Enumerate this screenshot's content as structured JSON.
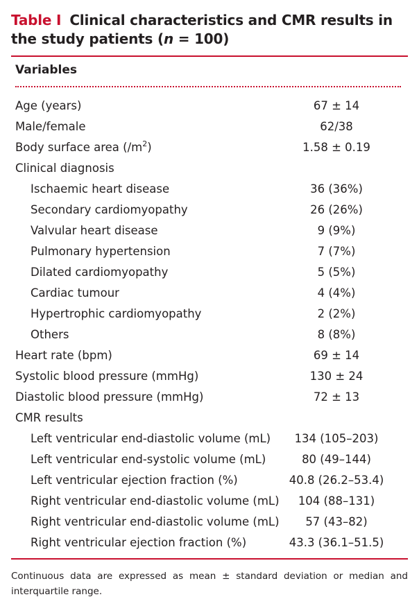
{
  "caption": {
    "label": "Table I",
    "title_part1": "Clinical characteristics and CMR results in the study patients (",
    "n_symbol": "n",
    "title_part2": " = 100)"
  },
  "header": {
    "variables": "Variables"
  },
  "rows": [
    {
      "name": "Age (years)",
      "value": "67 ± 14",
      "indent": false
    },
    {
      "name": "Male/female",
      "value": "62/38",
      "indent": false
    },
    {
      "name": "Body surface area (/m",
      "sup": "2",
      "name_end": ")",
      "value": "1.58 ± 0.19",
      "indent": false
    },
    {
      "name": "Clinical diagnosis",
      "value": "",
      "indent": false
    },
    {
      "name": "Ischaemic heart disease",
      "value": "36 (36%)",
      "indent": true
    },
    {
      "name": "Secondary cardiomyopathy",
      "value": "26 (26%)",
      "indent": true
    },
    {
      "name": "Valvular heart disease",
      "value": "9 (9%)",
      "indent": true
    },
    {
      "name": "Pulmonary hypertension",
      "value": "7 (7%)",
      "indent": true
    },
    {
      "name": "Dilated cardiomyopathy",
      "value": "5 (5%)",
      "indent": true
    },
    {
      "name": "Cardiac tumour",
      "value": "4 (4%)",
      "indent": true
    },
    {
      "name": "Hypertrophic cardiomyopathy",
      "value": "2 (2%)",
      "indent": true
    },
    {
      "name": "Others",
      "value": "8 (8%)",
      "indent": true
    },
    {
      "name": "Heart rate (bpm)",
      "value": "69 ± 14",
      "indent": false
    },
    {
      "name": "Systolic blood pressure (mmHg)",
      "value": "130 ± 24",
      "indent": false
    },
    {
      "name": "Diastolic blood pressure (mmHg)",
      "value": "72 ± 13",
      "indent": false
    },
    {
      "name": "CMR results",
      "value": "",
      "indent": false
    },
    {
      "name": "Left ventricular end-diastolic volume (mL)",
      "value": "134 (105–203)",
      "indent": true
    },
    {
      "name": "Left ventricular end-systolic volume (mL)",
      "value": "80 (49–144)",
      "indent": true
    },
    {
      "name": "Left ventricular ejection fraction (%)",
      "value": "40.8 (26.2–53.4)",
      "indent": true
    },
    {
      "name": "Right ventricular end-diastolic volume (mL)",
      "value": "104 (88–131)",
      "indent": true
    },
    {
      "name": "Right ventricular end-diastolic volume (mL)",
      "value": "57 (43–82)",
      "indent": true
    },
    {
      "name": "Right ventricular ejection fraction (%)",
      "value": "43.3 (36.1–51.5)",
      "indent": true
    }
  ],
  "footnote": "Continuous data are expressed as mean ± standard deviation or median and interquartile range.",
  "colors": {
    "accent": "#c8102e",
    "text": "#231f20"
  }
}
